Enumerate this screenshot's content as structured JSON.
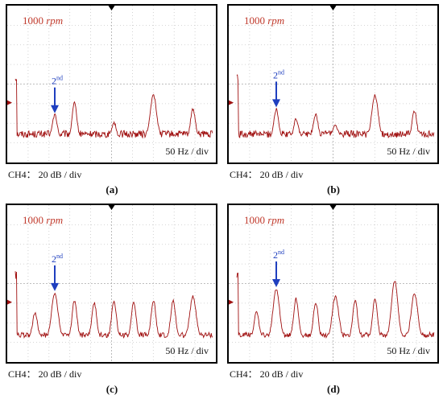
{
  "figure": {
    "panels": [
      {
        "id": "a",
        "speed_label": "1000",
        "speed_unit": "rpm",
        "harmonic_label": "2",
        "harmonic_sup": "nd",
        "div_label": "50 Hz / div",
        "ch_label": "CH4： 20 dB / div",
        "caption": "(a)"
      },
      {
        "id": "b",
        "speed_label": "1000",
        "speed_unit": "rpm",
        "harmonic_label": "2",
        "harmonic_sup": "nd",
        "div_label": "50 Hz / div",
        "ch_label": "CH4： 20 dB / div",
        "caption": "(b)"
      },
      {
        "id": "c",
        "speed_label": "1000",
        "speed_unit": "rpm",
        "harmonic_label": "2",
        "harmonic_sup": "nd",
        "div_label": "50 Hz / div",
        "ch_label": "CH4： 20 dB / div",
        "caption": "(c)"
      },
      {
        "id": "d",
        "speed_label": "1000",
        "speed_unit": "rpm",
        "harmonic_label": "2",
        "harmonic_sup": "nd",
        "div_label": "50 Hz / div",
        "ch_label": "CH4： 20 dB / div",
        "caption": "(d)"
      }
    ]
  },
  "colors": {
    "trace": "#a01010",
    "grid": "#c8c8c8",
    "arrow": "#1f3fbf",
    "speed_text": "#c0392b"
  },
  "chart_data": [
    {
      "type": "line",
      "x_unit": "Hz",
      "xlim": [
        0,
        500
      ],
      "x_div": 50,
      "y_unit": "dB",
      "y_div": 20,
      "peaks": [
        {
          "x": 100,
          "y_div": 1.2
        },
        {
          "x": 150,
          "y_div": 1.8
        },
        {
          "x": 250,
          "y_div": 0.8
        },
        {
          "x": 350,
          "y_div": 2.2
        },
        {
          "x": 450,
          "y_div": 1.5
        }
      ],
      "noise_floor_div": 0.4
    },
    {
      "type": "line",
      "x_unit": "Hz",
      "xlim": [
        0,
        500
      ],
      "x_div": 50,
      "y_unit": "dB",
      "y_div": 20,
      "peaks": [
        {
          "x": 100,
          "y_div": 1.5
        },
        {
          "x": 150,
          "y_div": 1.0
        },
        {
          "x": 200,
          "y_div": 1.2
        },
        {
          "x": 250,
          "y_div": 0.7
        },
        {
          "x": 350,
          "y_div": 2.2
        },
        {
          "x": 450,
          "y_div": 1.4
        }
      ],
      "noise_floor_div": 0.4
    },
    {
      "type": "line",
      "x_unit": "Hz",
      "xlim": [
        0,
        500
      ],
      "x_div": 50,
      "y_unit": "dB",
      "y_div": 20,
      "peaks": [
        {
          "x": 50,
          "y_div": 1.3
        },
        {
          "x": 100,
          "y_div": 2.3
        },
        {
          "x": 150,
          "y_div": 1.9
        },
        {
          "x": 200,
          "y_div": 1.8
        },
        {
          "x": 250,
          "y_div": 1.9
        },
        {
          "x": 300,
          "y_div": 1.8
        },
        {
          "x": 350,
          "y_div": 1.9
        },
        {
          "x": 400,
          "y_div": 1.9
        },
        {
          "x": 450,
          "y_div": 2.1
        }
      ],
      "noise_floor_div": 0.3
    },
    {
      "type": "line",
      "x_unit": "Hz",
      "xlim": [
        0,
        500
      ],
      "x_div": 50,
      "y_unit": "dB",
      "y_div": 20,
      "peaks": [
        {
          "x": 50,
          "y_div": 1.3
        },
        {
          "x": 100,
          "y_div": 2.5
        },
        {
          "x": 150,
          "y_div": 2.0
        },
        {
          "x": 200,
          "y_div": 1.8
        },
        {
          "x": 250,
          "y_div": 2.1
        },
        {
          "x": 300,
          "y_div": 1.9
        },
        {
          "x": 350,
          "y_div": 2.0
        },
        {
          "x": 400,
          "y_div": 2.9
        },
        {
          "x": 450,
          "y_div": 2.3
        }
      ],
      "noise_floor_div": 0.3
    }
  ]
}
